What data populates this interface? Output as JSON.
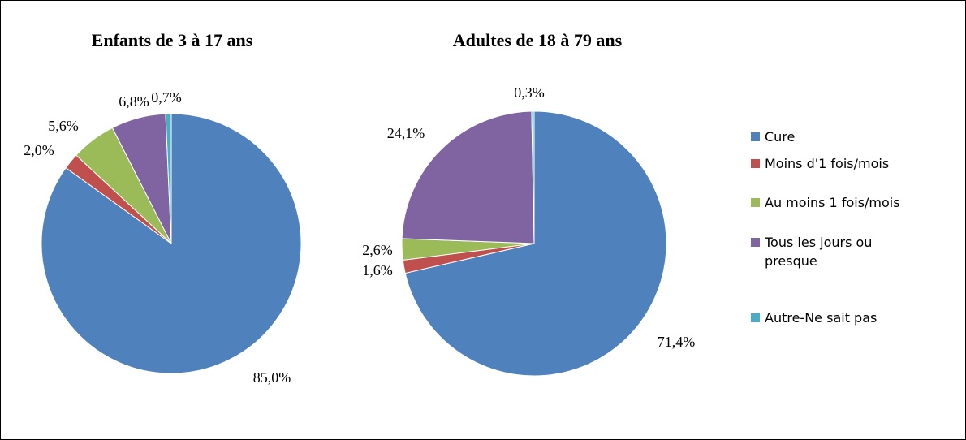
{
  "chart_data": [
    {
      "type": "pie",
      "title": "Enfants de 3 à 17 ans",
      "values": [
        85.0,
        2.0,
        5.6,
        6.8,
        0.7
      ],
      "value_labels": [
        "85,0%",
        "2,0%",
        "5,6%",
        "6,8%",
        "0,7%"
      ]
    },
    {
      "type": "pie",
      "title": "Adultes de 18 à 79 ans",
      "values": [
        71.4,
        1.6,
        2.6,
        24.1,
        0.3
      ],
      "value_labels": [
        "71,4%",
        "1,6%",
        "2,6%",
        "24,1%",
        "0,3%"
      ]
    }
  ],
  "legend": {
    "categories": [
      "Cure",
      "Moins d'1 fois/mois",
      "Au moins 1 fois/mois",
      "Tous les jours ou presque",
      "Autre-Ne sait pas"
    ],
    "colors": [
      "#4f81bd",
      "#c0504d",
      "#9bbb59",
      "#8064a2",
      "#4bacc6"
    ]
  }
}
